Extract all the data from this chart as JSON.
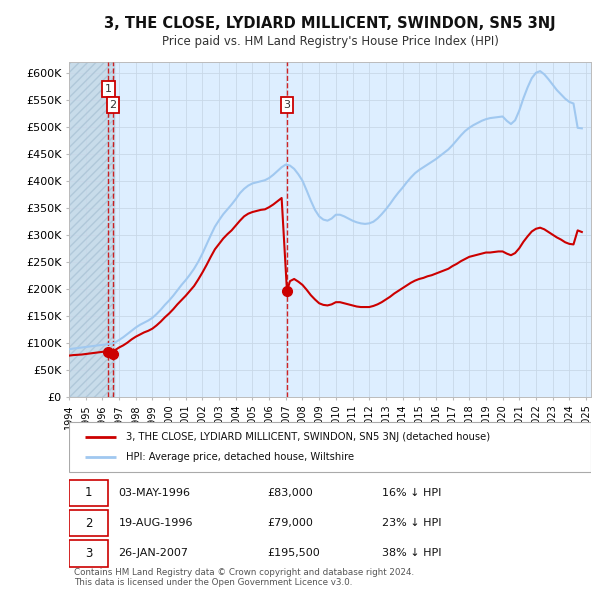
{
  "title": "3, THE CLOSE, LYDIARD MILLICENT, SWINDON, SN5 3NJ",
  "subtitle": "Price paid vs. HM Land Registry's House Price Index (HPI)",
  "xlim_start": 1994.0,
  "xlim_end": 2025.3,
  "ylim": [
    0,
    620000
  ],
  "yticks": [
    0,
    50000,
    100000,
    150000,
    200000,
    250000,
    300000,
    350000,
    400000,
    450000,
    500000,
    550000,
    600000
  ],
  "ytick_labels": [
    "£0",
    "£50K",
    "£100K",
    "£150K",
    "£200K",
    "£250K",
    "£300K",
    "£350K",
    "£400K",
    "£450K",
    "£500K",
    "£550K",
    "£600K"
  ],
  "sale_dates": [
    1996.36,
    1996.63,
    2007.07
  ],
  "sale_prices": [
    83000,
    79000,
    195500
  ],
  "hpi_line_color": "#a0c8f0",
  "sale_line_color": "#cc0000",
  "sale_dot_color": "#cc0000",
  "grid_color": "#c8d8e8",
  "background_color": "#ffffff",
  "plot_bg_color": "#ddeeff",
  "legend_entry1": "3, THE CLOSE, LYDIARD MILLICENT, SWINDON, SN5 3NJ (detached house)",
  "legend_entry2": "HPI: Average price, detached house, Wiltshire",
  "table_data": [
    [
      "1",
      "03-MAY-1996",
      "£83,000",
      "16% ↓ HPI"
    ],
    [
      "2",
      "19-AUG-1996",
      "£79,000",
      "23% ↓ HPI"
    ],
    [
      "3",
      "26-JAN-2007",
      "£195,500",
      "38% ↓ HPI"
    ]
  ],
  "footnote1": "Contains HM Land Registry data © Crown copyright and database right 2024.",
  "footnote2": "This data is licensed under the Open Government Licence v3.0.",
  "hpi_x": [
    1994.0,
    1994.25,
    1994.5,
    1994.75,
    1995.0,
    1995.25,
    1995.5,
    1995.75,
    1996.0,
    1996.25,
    1996.5,
    1996.75,
    1997.0,
    1997.25,
    1997.5,
    1997.75,
    1998.0,
    1998.25,
    1998.5,
    1998.75,
    1999.0,
    1999.25,
    1999.5,
    1999.75,
    2000.0,
    2000.25,
    2000.5,
    2000.75,
    2001.0,
    2001.25,
    2001.5,
    2001.75,
    2002.0,
    2002.25,
    2002.5,
    2002.75,
    2003.0,
    2003.25,
    2003.5,
    2003.75,
    2004.0,
    2004.25,
    2004.5,
    2004.75,
    2005.0,
    2005.25,
    2005.5,
    2005.75,
    2006.0,
    2006.25,
    2006.5,
    2006.75,
    2007.0,
    2007.25,
    2007.5,
    2007.75,
    2008.0,
    2008.25,
    2008.5,
    2008.75,
    2009.0,
    2009.25,
    2009.5,
    2009.75,
    2010.0,
    2010.25,
    2010.5,
    2010.75,
    2011.0,
    2011.25,
    2011.5,
    2011.75,
    2012.0,
    2012.25,
    2012.5,
    2012.75,
    2013.0,
    2013.25,
    2013.5,
    2013.75,
    2014.0,
    2014.25,
    2014.5,
    2014.75,
    2015.0,
    2015.25,
    2015.5,
    2015.75,
    2016.0,
    2016.25,
    2016.5,
    2016.75,
    2017.0,
    2017.25,
    2017.5,
    2017.75,
    2018.0,
    2018.25,
    2018.5,
    2018.75,
    2019.0,
    2019.25,
    2019.5,
    2019.75,
    2020.0,
    2020.25,
    2020.5,
    2020.75,
    2021.0,
    2021.25,
    2021.5,
    2021.75,
    2022.0,
    2022.25,
    2022.5,
    2022.75,
    2023.0,
    2023.25,
    2023.5,
    2023.75,
    2024.0,
    2024.25,
    2024.5,
    2024.75
  ],
  "hpi_y": [
    88000,
    89000,
    90000,
    91000,
    92000,
    93000,
    94000,
    95000,
    96000,
    97000,
    98000,
    100000,
    105000,
    110000,
    116000,
    122000,
    128000,
    133000,
    137000,
    141000,
    146000,
    153000,
    161000,
    170000,
    178000,
    187000,
    197000,
    207000,
    216000,
    226000,
    237000,
    250000,
    265000,
    282000,
    299000,
    315000,
    327000,
    338000,
    347000,
    356000,
    366000,
    377000,
    385000,
    391000,
    395000,
    397000,
    399000,
    401000,
    405000,
    411000,
    418000,
    425000,
    430000,
    428000,
    422000,
    412000,
    400000,
    382000,
    363000,
    346000,
    334000,
    328000,
    326000,
    330000,
    337000,
    337000,
    334000,
    330000,
    326000,
    323000,
    321000,
    320000,
    321000,
    324000,
    330000,
    338000,
    347000,
    357000,
    368000,
    378000,
    387000,
    397000,
    406000,
    414000,
    420000,
    425000,
    430000,
    435000,
    440000,
    446000,
    452000,
    458000,
    466000,
    475000,
    484000,
    492000,
    498000,
    503000,
    507000,
    511000,
    514000,
    516000,
    517000,
    518000,
    519000,
    511000,
    505000,
    512000,
    530000,
    553000,
    573000,
    590000,
    600000,
    603000,
    597000,
    588000,
    578000,
    568000,
    560000,
    552000,
    546000,
    543000,
    498000,
    497000
  ],
  "red_x": [
    1994.0,
    1994.25,
    1994.5,
    1994.75,
    1995.0,
    1995.25,
    1995.5,
    1995.75,
    1996.0,
    1996.25,
    1996.36,
    1996.5,
    1996.63,
    1996.75,
    1997.0,
    1997.25,
    1997.5,
    1997.75,
    1998.0,
    1998.25,
    1998.5,
    1998.75,
    1999.0,
    1999.25,
    1999.5,
    1999.75,
    2000.0,
    2000.25,
    2000.5,
    2000.75,
    2001.0,
    2001.25,
    2001.5,
    2001.75,
    2002.0,
    2002.25,
    2002.5,
    2002.75,
    2003.0,
    2003.25,
    2003.5,
    2003.75,
    2004.0,
    2004.25,
    2004.5,
    2004.75,
    2005.0,
    2005.25,
    2005.5,
    2005.75,
    2006.0,
    2006.25,
    2006.5,
    2006.75,
    2007.07,
    2007.25,
    2007.5,
    2007.75,
    2008.0,
    2008.25,
    2008.5,
    2008.75,
    2009.0,
    2009.25,
    2009.5,
    2009.75,
    2010.0,
    2010.25,
    2010.5,
    2010.75,
    2011.0,
    2011.25,
    2011.5,
    2011.75,
    2012.0,
    2012.25,
    2012.5,
    2012.75,
    2013.0,
    2013.25,
    2013.5,
    2013.75,
    2014.0,
    2014.25,
    2014.5,
    2014.75,
    2015.0,
    2015.25,
    2015.5,
    2015.75,
    2016.0,
    2016.25,
    2016.5,
    2016.75,
    2017.0,
    2017.25,
    2017.5,
    2017.75,
    2018.0,
    2018.25,
    2018.5,
    2018.75,
    2019.0,
    2019.25,
    2019.5,
    2019.75,
    2020.0,
    2020.25,
    2020.5,
    2020.75,
    2021.0,
    2021.25,
    2021.5,
    2021.75,
    2022.0,
    2022.25,
    2022.5,
    2022.75,
    2023.0,
    2023.25,
    2023.5,
    2023.75,
    2024.0,
    2024.25,
    2024.5,
    2024.75
  ],
  "red_y": [
    76000,
    77000,
    77500,
    78000,
    79000,
    80000,
    81000,
    82000,
    83000,
    84000,
    83000,
    84500,
    79000,
    86000,
    91000,
    95000,
    100000,
    106000,
    111000,
    115000,
    119000,
    122000,
    126000,
    132000,
    139000,
    147000,
    154000,
    162000,
    171000,
    179000,
    187000,
    196000,
    205000,
    217000,
    230000,
    244000,
    259000,
    273000,
    283000,
    293000,
    301000,
    308000,
    317000,
    326000,
    334000,
    339000,
    342000,
    344000,
    346000,
    347000,
    351000,
    356000,
    362000,
    368000,
    195500,
    214000,
    218000,
    213000,
    207000,
    198000,
    188000,
    180000,
    173000,
    170000,
    169000,
    171000,
    175000,
    175000,
    173000,
    171000,
    169000,
    167000,
    166000,
    166000,
    166000,
    168000,
    171000,
    175000,
    180000,
    185000,
    191000,
    196000,
    201000,
    206000,
    211000,
    215000,
    218000,
    220000,
    223000,
    225000,
    228000,
    231000,
    234000,
    237000,
    242000,
    246000,
    251000,
    255000,
    259000,
    261000,
    263000,
    265000,
    267000,
    267000,
    268000,
    269000,
    269000,
    265000,
    262000,
    266000,
    275000,
    287000,
    297000,
    306000,
    311000,
    313000,
    310000,
    305000,
    300000,
    295000,
    291000,
    286000,
    283000,
    282000,
    308000,
    305000
  ]
}
